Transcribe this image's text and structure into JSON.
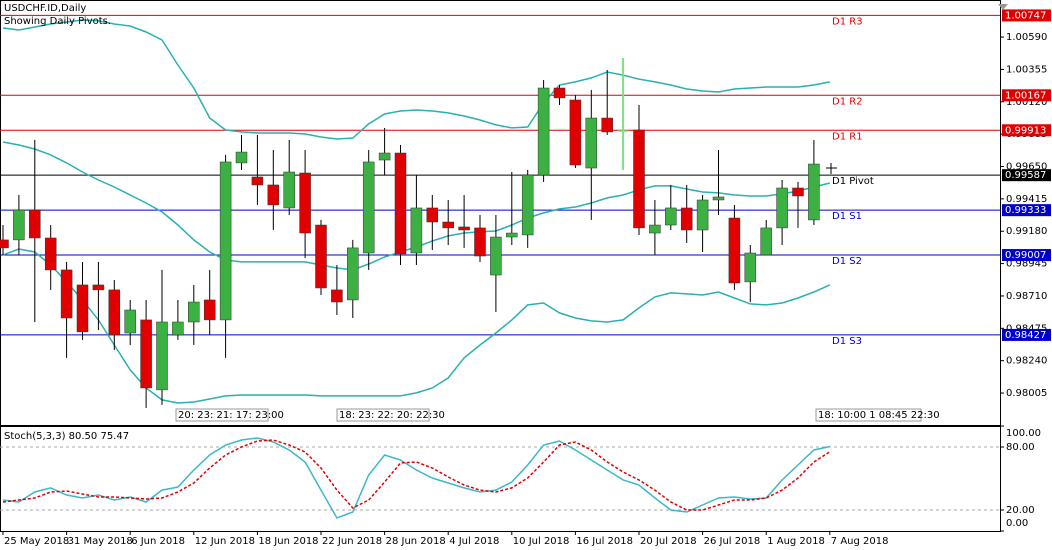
{
  "chart_data": [
    {
      "type": "candlestick",
      "title": "USDCHF.ID,Daily",
      "subtitle": "Showing Daily Pivots.",
      "categories": [
        "25 May 2018",
        null,
        null,
        null,
        "31 May 2018",
        null,
        null,
        null,
        "6 Jun 2018",
        null,
        null,
        null,
        "12 Jun 2018",
        null,
        null,
        null,
        "18 Jun 2018",
        null,
        null,
        null,
        "22 Jun 2018",
        null,
        null,
        null,
        "28 Jun 2018",
        null,
        null,
        null,
        "4 Jul 2018",
        null,
        null,
        null,
        "10 Jul 2018",
        null,
        null,
        null,
        "16 Jul 2018",
        null,
        null,
        null,
        "20 Jul 2018",
        null,
        null,
        null,
        "26 Jul 2018",
        null,
        null,
        null,
        "1 Aug 2018",
        null,
        null,
        null,
        "7 Aug 2018"
      ],
      "open": [
        0.99117,
        0.99117,
        0.99334,
        0.99131,
        0.98899,
        0.9879,
        0.9879,
        0.98754,
        0.98441,
        0.98536,
        0.98028,
        0.98427,
        0.98521,
        0.98681,
        0.98536,
        0.99676,
        0.99574,
        0.99516,
        0.99349,
        0.99603,
        0.99225,
        0.98754,
        0.98681,
        0.99022,
        0.99697,
        0.99748,
        0.99022,
        0.99349,
        0.99247,
        0.99211,
        0.99204,
        0.98862,
        0.99138,
        0.99153,
        0.99588,
        1.0022,
        1.00133,
        0.99639,
        1.00002,
        0.99908,
        0.99915,
        0.99167,
        0.99225,
        0.99349,
        0.99189,
        0.99407,
        0.99276,
        0.98812,
        0.99008,
        0.99204,
        0.99494,
        0.99262,
        null
      ],
      "high": [
        0.99225,
        0.99443,
        0.99843,
        0.99225,
        0.98957,
        0.98957,
        0.98957,
        0.98826,
        0.98681,
        0.98681,
        0.98899,
        0.98681,
        0.9879,
        0.98899,
        0.99734,
        0.99879,
        0.99879,
        0.9977,
        0.99843,
        0.9977,
        0.99262,
        0.98935,
        0.99117,
        0.9977,
        0.9993,
        0.99806,
        0.99588,
        0.99443,
        0.99407,
        0.99443,
        0.99298,
        0.99298,
        0.9961,
        0.99625,
        1.00278,
        1.00242,
        1.00169,
        1.00206,
        1.00351,
        1.00438,
        1.00097,
        0.99407,
        0.99516,
        0.99516,
        0.99443,
        0.9977,
        0.99371,
        0.9908,
        0.99262,
        0.99552,
        0.99538,
        0.99843,
        null
      ],
      "low": [
        0.99008,
        0.99008,
        0.98521,
        0.98754,
        0.9826,
        0.98391,
        0.98463,
        0.98318,
        0.98354,
        0.97897,
        0.97919,
        0.98391,
        0.98354,
        0.98427,
        0.9826,
        0.99625,
        0.99371,
        0.99189,
        0.99298,
        0.98986,
        0.98717,
        0.98572,
        0.9855,
        0.98899,
        0.99588,
        0.98935,
        0.98935,
        0.99044,
        0.9908,
        0.99059,
        0.98957,
        0.98594,
        0.9908,
        0.99059,
        0.99538,
        1.00097,
        0.99639,
        0.99262,
        0.99879,
        0.99625,
        0.99153,
        0.99008,
        0.99189,
        0.99095,
        0.99029,
        0.99298,
        0.98754,
        0.98666,
        0.99008,
        0.9908,
        0.99204,
        0.99225,
        null
      ],
      "close": [
        0.99059,
        0.99334,
        0.99131,
        0.98899,
        0.9855,
        0.98449,
        0.98754,
        0.98427,
        0.98608,
        0.98042,
        0.98521,
        0.98521,
        0.98666,
        0.98536,
        0.99683,
        0.99755,
        0.99516,
        0.99371,
        0.9961,
        0.99167,
        0.98768,
        0.98666,
        0.99059,
        0.99683,
        0.99748,
        0.99015,
        0.99349,
        0.99247,
        0.99204,
        0.99189,
        0.99,
        0.99138,
        0.99167,
        0.99588,
        1.0022,
        1.00148,
        0.99661,
        1.00002,
        0.99901,
        0.99908,
        0.99204,
        0.99225,
        0.99349,
        0.99189,
        0.99407,
        0.99429,
        0.98804,
        0.99022,
        0.99204,
        0.99494,
        0.99436,
        0.99668,
        null
      ],
      "up_color": "#3cb043",
      "down_color": "#e00000",
      "doji_color": "#7ee07e",
      "wick_color": "#000000",
      "bands": {
        "color": "#2ab0b0",
        "upper": [
          1.00656,
          1.00641,
          1.00663,
          1.00685,
          1.00699,
          1.00714,
          1.00707,
          1.00685,
          1.0067,
          1.00627,
          1.00569,
          1.00387,
          1.0022,
          1.00002,
          0.99915,
          0.99901,
          0.99893,
          0.99893,
          0.99893,
          0.99886,
          0.99864,
          0.9985,
          0.99857,
          0.99959,
          1.00031,
          1.00053,
          1.0006,
          1.00053,
          1.00039,
          1.00017,
          0.99988,
          0.99952,
          0.9993,
          0.99937,
          1.00111,
          1.00242,
          1.00264,
          1.00293,
          1.00336,
          1.00314,
          1.00285,
          1.00264,
          1.00242,
          1.00213,
          1.00198,
          1.00191,
          1.00213,
          1.0022,
          1.00227,
          1.00227,
          1.00227,
          1.00242,
          1.00264
        ],
        "middle": [
          0.99828,
          0.99806,
          0.99777,
          0.99734,
          0.99676,
          0.9961,
          0.99552,
          0.99501,
          0.99443,
          0.99385,
          0.9932,
          0.99225,
          0.99117,
          0.99029,
          0.98971,
          0.98957,
          0.98957,
          0.98957,
          0.98957,
          0.98957,
          0.98935,
          0.98913,
          0.98899,
          0.98942,
          0.98993,
          0.99029,
          0.99066,
          0.99109,
          0.99146,
          0.99167,
          0.99175,
          0.99182,
          0.99225,
          0.99276,
          0.99313,
          0.99342,
          0.99356,
          0.99385,
          0.99422,
          0.99443,
          0.9948,
          0.99509,
          0.99509,
          0.99487,
          0.99465,
          0.99458,
          0.99443,
          0.99436,
          0.99436,
          0.99451,
          0.99472,
          0.99501,
          0.9953
        ],
        "lower": [
          0.99008,
          0.99051,
          0.99029,
          0.98935,
          0.98812,
          0.98681,
          0.98536,
          0.98354,
          0.98173,
          0.98042,
          0.97955,
          0.97933,
          0.9794,
          0.97962,
          0.97984,
          0.97991,
          0.97991,
          0.97991,
          0.97991,
          0.97991,
          0.97984,
          0.97984,
          0.97984,
          0.97984,
          0.97984,
          0.97984,
          0.98006,
          0.98042,
          0.98115,
          0.9826,
          0.98354,
          0.98441,
          0.98536,
          0.98645,
          0.98659,
          0.98587,
          0.9855,
          0.98529,
          0.98521,
          0.98536,
          0.98623,
          0.98703,
          0.98732,
          0.98725,
          0.98717,
          0.98739,
          0.98695,
          0.98652,
          0.98645,
          0.98659,
          0.98695,
          0.98739,
          0.9879
        ]
      },
      "pivots": [
        {
          "label": "D1 R3",
          "value": 1.00747,
          "color": "#e00000"
        },
        {
          "label": "D1 R2",
          "value": 1.00167,
          "color": "#e00000"
        },
        {
          "label": "D1 R1",
          "value": 0.99913,
          "color": "#e00000"
        },
        {
          "label": "D1 Pivot",
          "value": 0.99587,
          "color": "#000000"
        },
        {
          "label": "D1 S1",
          "value": 0.99333,
          "color": "#0000cc"
        },
        {
          "label": "D1 S2",
          "value": 0.99007,
          "color": "#0000cc"
        },
        {
          "label": "D1 S3",
          "value": 0.98427,
          "color": "#0000cc"
        }
      ],
      "session_labels": [
        "20: 23: 21: 17: 23:00",
        "18: 23: 22: 20: 22:30",
        "18: 10:00 1 08:45 22:30"
      ],
      "ylim": [
        0.97773,
        1.00859
      ],
      "yticks": [
        {
          "value": 1.0059,
          "label": "1.00590"
        },
        {
          "value": 1.00355,
          "label": "1.00355"
        },
        {
          "value": 1.0012,
          "label": "1.00120"
        },
        {
          "value": 0.99885,
          "label": "0.99885"
        },
        {
          "value": 0.9965,
          "label": "0.99650"
        },
        {
          "value": 0.99415,
          "label": "0.99415"
        },
        {
          "value": 0.9918,
          "label": "0.99180"
        },
        {
          "value": 0.98945,
          "label": "0.98945"
        },
        {
          "value": 0.9871,
          "label": "0.98710"
        },
        {
          "value": 0.98475,
          "label": "0.98475"
        },
        {
          "value": 0.9824,
          "label": "0.98240"
        },
        {
          "value": 0.98005,
          "label": "0.98005"
        }
      ]
    },
    {
      "type": "line",
      "title": "Stoch(5,3,3) 80.50 75.47",
      "series": [
        {
          "color": "#3cb8c8",
          "dash": false,
          "values": [
            29.5,
            27.6,
            37.1,
            41.0,
            34.3,
            31.4,
            34.3,
            29.5,
            32.4,
            27.6,
            39.0,
            41.9,
            58.1,
            72.4,
            81.9,
            86.7,
            88.6,
            84.8,
            77.1,
            65.7,
            39.0,
            12.4,
            18.1,
            53.3,
            72.4,
            67.6,
            58.1,
            50.5,
            45.7,
            41.0,
            37.1,
            39.0,
            46.7,
            62.9,
            81.9,
            85.7,
            77.1,
            67.6,
            58.1,
            48.6,
            43.8,
            31.4,
            20.0,
            18.1,
            24.8,
            31.4,
            32.4,
            30.5,
            31.4,
            48.6,
            62.9,
            77.1,
            80.5
          ]
        },
        {
          "color": "#e00000",
          "dash": true,
          "values": [
            27.6,
            29.5,
            31.4,
            37.1,
            38.1,
            35.2,
            32.4,
            32.4,
            31.4,
            30.5,
            31.4,
            37.1,
            45.7,
            60.0,
            72.4,
            80.0,
            85.7,
            86.7,
            81.9,
            75.2,
            60.0,
            39.0,
            21.9,
            29.5,
            46.7,
            64.8,
            65.7,
            60.0,
            51.4,
            43.8,
            39.0,
            37.1,
            41.0,
            50.5,
            65.7,
            81.9,
            84.8,
            77.1,
            65.7,
            56.2,
            48.6,
            39.0,
            27.6,
            20.0,
            20.0,
            24.8,
            29.5,
            29.5,
            31.4,
            39.0,
            50.5,
            65.7,
            75.47
          ]
        }
      ],
      "levels": [
        80,
        20
      ],
      "ylim": [
        0,
        100
      ],
      "yticks": [
        {
          "value": 100,
          "label": "100.00"
        },
        {
          "value": 80,
          "label": "80.00"
        },
        {
          "value": 20,
          "label": "20.00"
        },
        {
          "value": 0,
          "label": "0.00"
        }
      ]
    }
  ]
}
